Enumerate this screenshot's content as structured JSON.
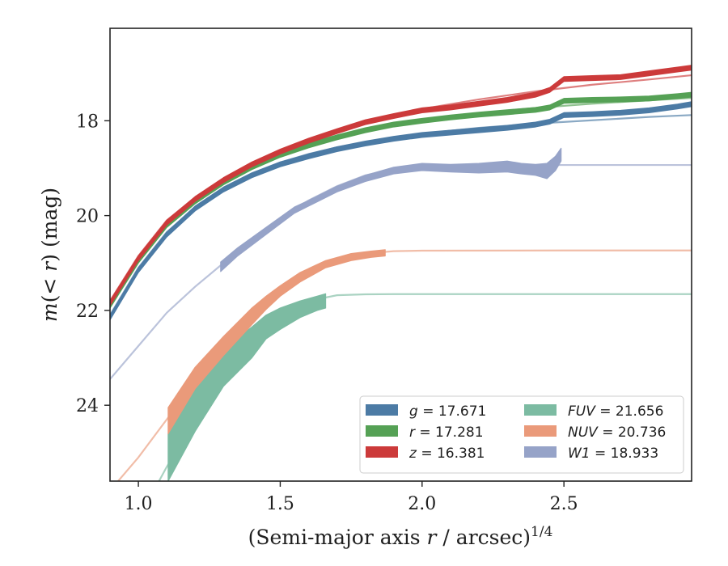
{
  "chart_data": {
    "type": "line",
    "xlabel": "(Semi-major axis r / arcsec)",
    "xlabel_parts": {
      "prefix": "(Semi-major axis ",
      "var": "r",
      "suffix": " / arcsec)",
      "superscript": "1/4"
    },
    "ylabel": "m(< r) (mag)",
    "ylabel_parts": {
      "m": "m",
      "open": "(",
      "lt": "<",
      "r": "r",
      "close": ")",
      "unit": " (mag)"
    },
    "xlim": [
      0.9,
      2.95
    ],
    "ylim": [
      25.6,
      16.05
    ],
    "y_inverted": true,
    "xticks": [
      1.0,
      1.5,
      2.0,
      2.5
    ],
    "xtick_labels": [
      "1.0",
      "1.5",
      "2.0",
      "2.5"
    ],
    "yticks": [
      18,
      20,
      22,
      24
    ],
    "ytick_labels": [
      "18",
      "20",
      "22",
      "24"
    ],
    "grid": false,
    "legend_placement": "lower-right",
    "legend_columns": 2,
    "series": [
      {
        "name": "g = 17.671",
        "label_var": "g",
        "label_value": "17.671",
        "color": "#4c7ba5",
        "data_x": [
          0.9,
          1.0,
          1.1,
          1.2,
          1.3,
          1.4,
          1.5,
          1.6,
          1.7,
          1.8,
          1.9,
          2.0,
          2.1,
          2.2,
          2.3,
          2.4,
          2.45,
          2.5,
          2.6,
          2.7,
          2.8,
          2.9,
          2.95
        ],
        "data_y": [
          22.15,
          21.15,
          20.4,
          19.85,
          19.45,
          19.15,
          18.92,
          18.75,
          18.6,
          18.48,
          18.38,
          18.3,
          18.25,
          18.2,
          18.15,
          18.08,
          18.02,
          17.88,
          17.86,
          17.83,
          17.78,
          17.7,
          17.65
        ],
        "band_width": 0.1,
        "model_x": [
          0.9,
          1.0,
          1.1,
          1.2,
          1.3,
          1.4,
          1.5,
          1.6,
          1.7,
          1.8,
          1.9,
          2.0,
          2.2,
          2.4,
          2.6,
          2.8,
          2.95
        ],
        "model_y": [
          22.1,
          21.1,
          20.35,
          19.83,
          19.43,
          19.12,
          18.88,
          18.7,
          18.56,
          18.45,
          18.35,
          18.27,
          18.15,
          18.06,
          17.99,
          17.92,
          17.88
        ]
      },
      {
        "name": "r = 17.281",
        "label_var": "r",
        "label_value": "17.281",
        "color": "#55a155",
        "data_x": [
          0.9,
          1.0,
          1.1,
          1.2,
          1.3,
          1.4,
          1.5,
          1.6,
          1.7,
          1.8,
          1.9,
          2.0,
          2.1,
          2.2,
          2.3,
          2.4,
          2.45,
          2.5,
          2.6,
          2.7,
          2.8,
          2.9,
          2.95
        ],
        "data_y": [
          21.9,
          20.95,
          20.2,
          19.7,
          19.3,
          18.98,
          18.72,
          18.52,
          18.35,
          18.2,
          18.08,
          18.0,
          17.93,
          17.87,
          17.82,
          17.77,
          17.72,
          17.58,
          17.56,
          17.55,
          17.53,
          17.48,
          17.45
        ],
        "band_width": 0.1,
        "model_x": [
          0.9,
          1.0,
          1.1,
          1.2,
          1.3,
          1.4,
          1.5,
          1.6,
          1.7,
          1.8,
          1.9,
          2.0,
          2.2,
          2.4,
          2.6,
          2.8,
          2.95
        ],
        "model_y": [
          21.85,
          20.9,
          20.15,
          19.66,
          19.27,
          18.95,
          18.7,
          18.5,
          18.33,
          18.18,
          18.05,
          17.97,
          17.84,
          17.73,
          17.64,
          17.57,
          17.52
        ]
      },
      {
        "name": "z = 16.381",
        "label_var": "z",
        "label_value": "16.381",
        "color": "#cc3a3a",
        "data_x": [
          0.9,
          1.0,
          1.1,
          1.2,
          1.3,
          1.4,
          1.5,
          1.6,
          1.7,
          1.8,
          1.9,
          2.0,
          2.1,
          2.2,
          2.3,
          2.4,
          2.45,
          2.5,
          2.6,
          2.7,
          2.8,
          2.9,
          2.95
        ],
        "data_y": [
          21.85,
          20.9,
          20.15,
          19.65,
          19.25,
          18.92,
          18.65,
          18.42,
          18.22,
          18.03,
          17.9,
          17.78,
          17.72,
          17.64,
          17.56,
          17.45,
          17.35,
          17.12,
          17.1,
          17.08,
          17.0,
          16.92,
          16.88
        ],
        "band_width": 0.1,
        "model_x": [
          0.9,
          1.0,
          1.1,
          1.2,
          1.3,
          1.4,
          1.5,
          1.6,
          1.7,
          1.8,
          1.9,
          2.0,
          2.2,
          2.4,
          2.6,
          2.8,
          2.95
        ],
        "model_y": [
          21.8,
          20.85,
          20.1,
          19.62,
          19.23,
          18.9,
          18.63,
          18.4,
          18.2,
          18.02,
          17.87,
          17.75,
          17.55,
          17.38,
          17.24,
          17.13,
          17.04
        ]
      },
      {
        "name": "FUV = 21.656",
        "label_var": "FUV",
        "label_value": "21.656",
        "color": "#7cbba2",
        "data_x": [
          1.105,
          1.2,
          1.3,
          1.4,
          1.45,
          1.5,
          1.57,
          1.63,
          1.66
        ],
        "data_lower": [
          25.6,
          24.55,
          23.6,
          23.0,
          22.6,
          22.4,
          22.15,
          22.0,
          21.95
        ],
        "data_upper": [
          24.6,
          23.55,
          22.8,
          22.35,
          22.1,
          21.95,
          21.8,
          21.7,
          21.65
        ],
        "model_x": [
          0.9,
          1.0,
          1.1,
          1.2,
          1.3,
          1.4,
          1.5,
          1.6,
          1.7,
          1.8,
          1.9,
          2.0,
          2.5,
          2.95
        ],
        "model_y": [
          27.5,
          26.4,
          25.3,
          24.3,
          23.3,
          22.6,
          22.1,
          21.8,
          21.68,
          21.66,
          21.656,
          21.656,
          21.656,
          21.656
        ]
      },
      {
        "name": "NUV = 20.736",
        "label_var": "NUV",
        "label_value": "20.736",
        "color": "#ea9a7a",
        "data_x": [
          1.105,
          1.2,
          1.3,
          1.4,
          1.45,
          1.5,
          1.57,
          1.66,
          1.75,
          1.82,
          1.87
        ],
        "data_lower": [
          24.6,
          23.65,
          22.95,
          22.3,
          21.98,
          21.7,
          21.4,
          21.1,
          20.95,
          20.88,
          20.85
        ],
        "data_upper": [
          24.05,
          23.2,
          22.55,
          21.95,
          21.7,
          21.48,
          21.2,
          20.95,
          20.8,
          20.75,
          20.72
        ],
        "model_x": [
          0.9,
          1.0,
          1.1,
          1.2,
          1.3,
          1.4,
          1.5,
          1.6,
          1.7,
          1.8,
          1.9,
          2.0,
          2.5,
          2.95
        ],
        "model_y": [
          25.8,
          25.1,
          24.3,
          23.5,
          22.75,
          22.0,
          21.5,
          21.15,
          20.93,
          20.8,
          20.75,
          20.74,
          20.736,
          20.736
        ]
      },
      {
        "name": "W1 = 18.933",
        "label_var": "W1",
        "label_value": "18.933",
        "color": "#96a3c8",
        "data_x": [
          1.29,
          1.35,
          1.45,
          1.55,
          1.6,
          1.7,
          1.8,
          1.9,
          2.0,
          2.1,
          2.2,
          2.3,
          2.35,
          2.4,
          2.44,
          2.47,
          2.49
        ],
        "data_lower": [
          21.18,
          20.85,
          20.4,
          19.95,
          19.8,
          19.5,
          19.28,
          19.12,
          19.05,
          19.08,
          19.1,
          19.08,
          19.12,
          19.15,
          19.22,
          19.05,
          18.85
        ],
        "data_upper": [
          20.98,
          20.68,
          20.25,
          19.82,
          19.68,
          19.38,
          19.15,
          18.98,
          18.9,
          18.92,
          18.9,
          18.85,
          18.9,
          18.92,
          18.9,
          18.75,
          18.58
        ],
        "model_x": [
          0.9,
          1.0,
          1.1,
          1.2,
          1.3,
          1.4,
          1.5,
          1.6,
          1.7,
          1.8,
          1.9,
          2.0,
          2.1,
          2.5,
          2.95
        ],
        "model_y": [
          23.45,
          22.75,
          22.05,
          21.5,
          21.0,
          20.5,
          20.05,
          19.68,
          19.38,
          19.15,
          19.02,
          18.96,
          18.94,
          18.933,
          18.933
        ]
      }
    ]
  }
}
